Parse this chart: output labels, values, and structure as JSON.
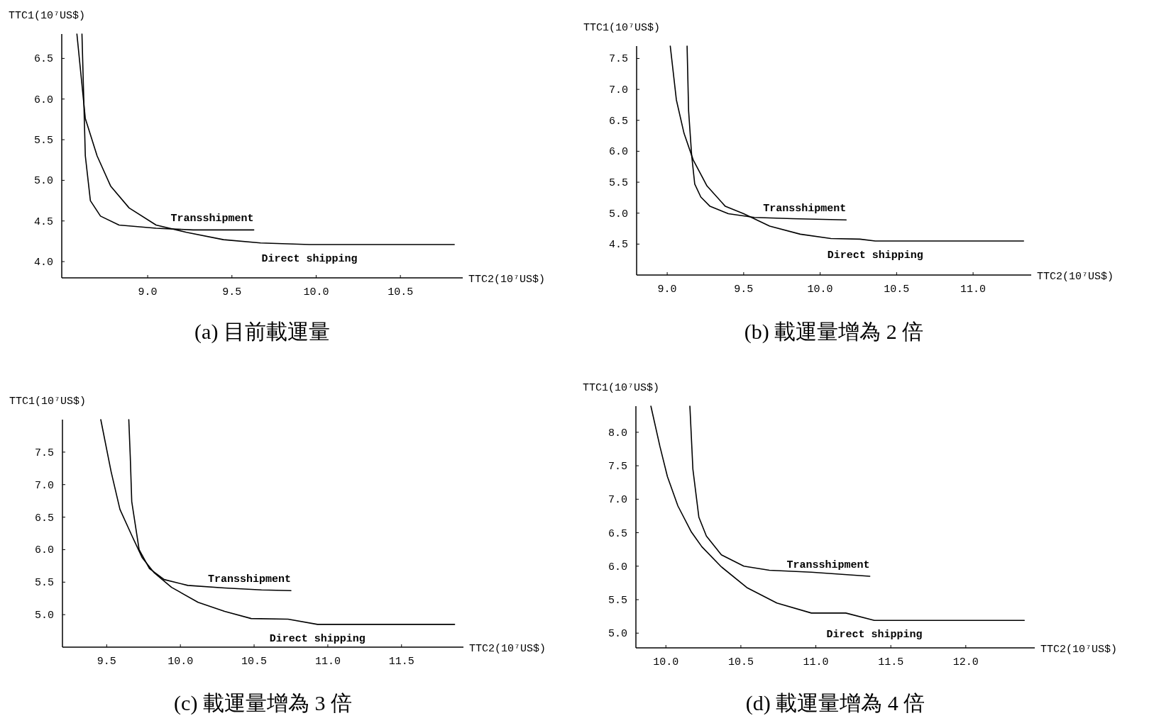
{
  "chart_data": [
    {
      "type": "line",
      "title": "(a)  目前載運量",
      "xlabel": "TTC2(10⁷US$)",
      "ylabel": "TTC1(10⁷US$)",
      "xlim": [
        8.49,
        10.87
      ],
      "ylim": [
        3.8,
        6.8
      ],
      "xticks": [
        {
          "value": 9,
          "label": "9.0"
        },
        {
          "value": 9.5,
          "label": "9.5"
        },
        {
          "value": 10,
          "label": "10.0"
        },
        {
          "value": 10.5,
          "label": "10.5"
        }
      ],
      "yticks": [
        {
          "value": 4,
          "label": "4.0"
        },
        {
          "value": 4.5,
          "label": "4.5"
        },
        {
          "value": 5,
          "label": "5.0"
        },
        {
          "value": 5.5,
          "label": "5.5"
        },
        {
          "value": 6,
          "label": "6.0"
        },
        {
          "value": 6.5,
          "label": "6.5"
        }
      ],
      "series": [
        {
          "name": "Transshipment",
          "color": "#000000",
          "x": [
            8.61,
            8.63,
            8.66,
            8.72,
            8.83,
            9.05,
            9.27,
            9.63
          ],
          "values": [
            6.8,
            5.3,
            4.75,
            4.56,
            4.45,
            4.41,
            4.39,
            4.39
          ]
        },
        {
          "name": "Direct shipping",
          "color": "#000000",
          "x": [
            8.58,
            8.63,
            8.7,
            8.78,
            8.89,
            9.05,
            9.23,
            9.45,
            9.67,
            9.96,
            10.82
          ],
          "values": [
            6.8,
            5.76,
            5.3,
            4.93,
            4.66,
            4.45,
            4.36,
            4.27,
            4.23,
            4.21,
            4.21
          ]
        }
      ]
    },
    {
      "type": "line",
      "title": "(b)  載運量增為 2 倍",
      "xlabel": "TTC2(10⁷US$)",
      "ylabel": "TTC1(10⁷US$)",
      "xlim": [
        8.8,
        11.38
      ],
      "ylim": [
        4.0,
        7.7
      ],
      "xticks": [
        {
          "value": 9,
          "label": "9.0"
        },
        {
          "value": 9.5,
          "label": "9.5"
        },
        {
          "value": 10,
          "label": "10.0"
        },
        {
          "value": 10.5,
          "label": "10.5"
        },
        {
          "value": 11,
          "label": "11.0"
        }
      ],
      "yticks": [
        {
          "value": 4.5,
          "label": "4.5"
        },
        {
          "value": 5,
          "label": "5.0"
        },
        {
          "value": 5.5,
          "label": "5.5"
        },
        {
          "value": 6,
          "label": "6.0"
        },
        {
          "value": 6.5,
          "label": "6.5"
        },
        {
          "value": 7,
          "label": "7.0"
        },
        {
          "value": 7.5,
          "label": "7.5"
        }
      ],
      "series": [
        {
          "name": "Transshipment",
          "color": "#000000",
          "x": [
            9.13,
            9.14,
            9.16,
            9.18,
            9.22,
            9.28,
            9.4,
            9.57,
            9.82,
            10.17
          ],
          "values": [
            7.7,
            6.65,
            5.93,
            5.47,
            5.26,
            5.11,
            4.99,
            4.93,
            4.91,
            4.89
          ]
        },
        {
          "name": "Direct shipping",
          "color": "#000000",
          "x": [
            9.02,
            9.06,
            9.11,
            9.17,
            9.26,
            9.38,
            9.5,
            9.67,
            9.87,
            10.07,
            10.26,
            10.36,
            11.33
          ],
          "values": [
            7.7,
            6.83,
            6.29,
            5.86,
            5.44,
            5.11,
            4.99,
            4.79,
            4.66,
            4.59,
            4.58,
            4.55,
            4.55
          ]
        }
      ]
    },
    {
      "type": "line",
      "title": "(c)  載運量增為 3 倍",
      "xlabel": "TTC2(10⁷US$)",
      "ylabel": "TTC1(10⁷US$)",
      "xlim": [
        9.2,
        11.92
      ],
      "ylim": [
        4.5,
        8.0
      ],
      "xticks": [
        {
          "value": 9.5,
          "label": "9.5"
        },
        {
          "value": 10,
          "label": "10.0"
        },
        {
          "value": 10.5,
          "label": "10.5"
        },
        {
          "value": 11,
          "label": "11.0"
        },
        {
          "value": 11.5,
          "label": "11.5"
        }
      ],
      "yticks": [
        {
          "value": 5,
          "label": "5.0"
        },
        {
          "value": 5.5,
          "label": "5.5"
        },
        {
          "value": 6,
          "label": "6.0"
        },
        {
          "value": 6.5,
          "label": "6.5"
        },
        {
          "value": 7,
          "label": "7.0"
        },
        {
          "value": 7.5,
          "label": "7.5"
        }
      ],
      "series": [
        {
          "name": "Transshipment",
          "color": "#000000",
          "x": [
            9.65,
            9.66,
            9.67,
            9.72,
            9.79,
            9.89,
            10.05,
            10.3,
            10.55,
            10.75
          ],
          "values": [
            8.0,
            7.43,
            6.74,
            6.0,
            5.71,
            5.54,
            5.45,
            5.41,
            5.38,
            5.37
          ]
        },
        {
          "name": "Direct shipping",
          "color": "#000000",
          "x": [
            9.46,
            9.53,
            9.59,
            9.67,
            9.74,
            9.82,
            9.94,
            10.12,
            10.3,
            10.48,
            10.73,
            10.93,
            11.86
          ],
          "values": [
            8.0,
            7.2,
            6.62,
            6.22,
            5.88,
            5.65,
            5.42,
            5.19,
            5.05,
            4.94,
            4.93,
            4.85,
            4.85
          ]
        }
      ]
    },
    {
      "type": "line",
      "title": "(d)  載運量增為 4 倍",
      "xlabel": "TTC2(10⁷US$)",
      "ylabel": "TTC1(10⁷US$)",
      "xlim": [
        9.8,
        12.46
      ],
      "ylim": [
        4.78,
        8.39
      ],
      "xticks": [
        {
          "value": 10,
          "label": "10.0"
        },
        {
          "value": 10.5,
          "label": "10.5"
        },
        {
          "value": 11,
          "label": "11.0"
        },
        {
          "value": 11.5,
          "label": "11.5"
        },
        {
          "value": 12,
          "label": "12.0"
        }
      ],
      "yticks": [
        {
          "value": 5,
          "label": "5.0"
        },
        {
          "value": 5.5,
          "label": "5.5"
        },
        {
          "value": 6,
          "label": "6.0"
        },
        {
          "value": 6.5,
          "label": "6.5"
        },
        {
          "value": 7,
          "label": "7.0"
        },
        {
          "value": 7.5,
          "label": "7.5"
        },
        {
          "value": 8,
          "label": "8.0"
        }
      ],
      "series": [
        {
          "name": "Transshipment",
          "color": "#000000",
          "x": [
            10.16,
            10.18,
            10.22,
            10.27,
            10.37,
            10.52,
            10.69,
            10.97,
            11.36
          ],
          "values": [
            8.39,
            7.45,
            6.73,
            6.45,
            6.17,
            6.0,
            5.94,
            5.91,
            5.85
          ]
        },
        {
          "name": "Direct shipping",
          "color": "#000000",
          "x": [
            9.9,
            9.96,
            10.01,
            10.08,
            10.17,
            10.24,
            10.37,
            10.54,
            10.74,
            10.97,
            11.2,
            11.39,
            12.39
          ],
          "values": [
            8.39,
            7.79,
            7.34,
            6.9,
            6.51,
            6.29,
            5.99,
            5.68,
            5.45,
            5.3,
            5.3,
            5.19,
            5.19
          ]
        }
      ]
    }
  ]
}
